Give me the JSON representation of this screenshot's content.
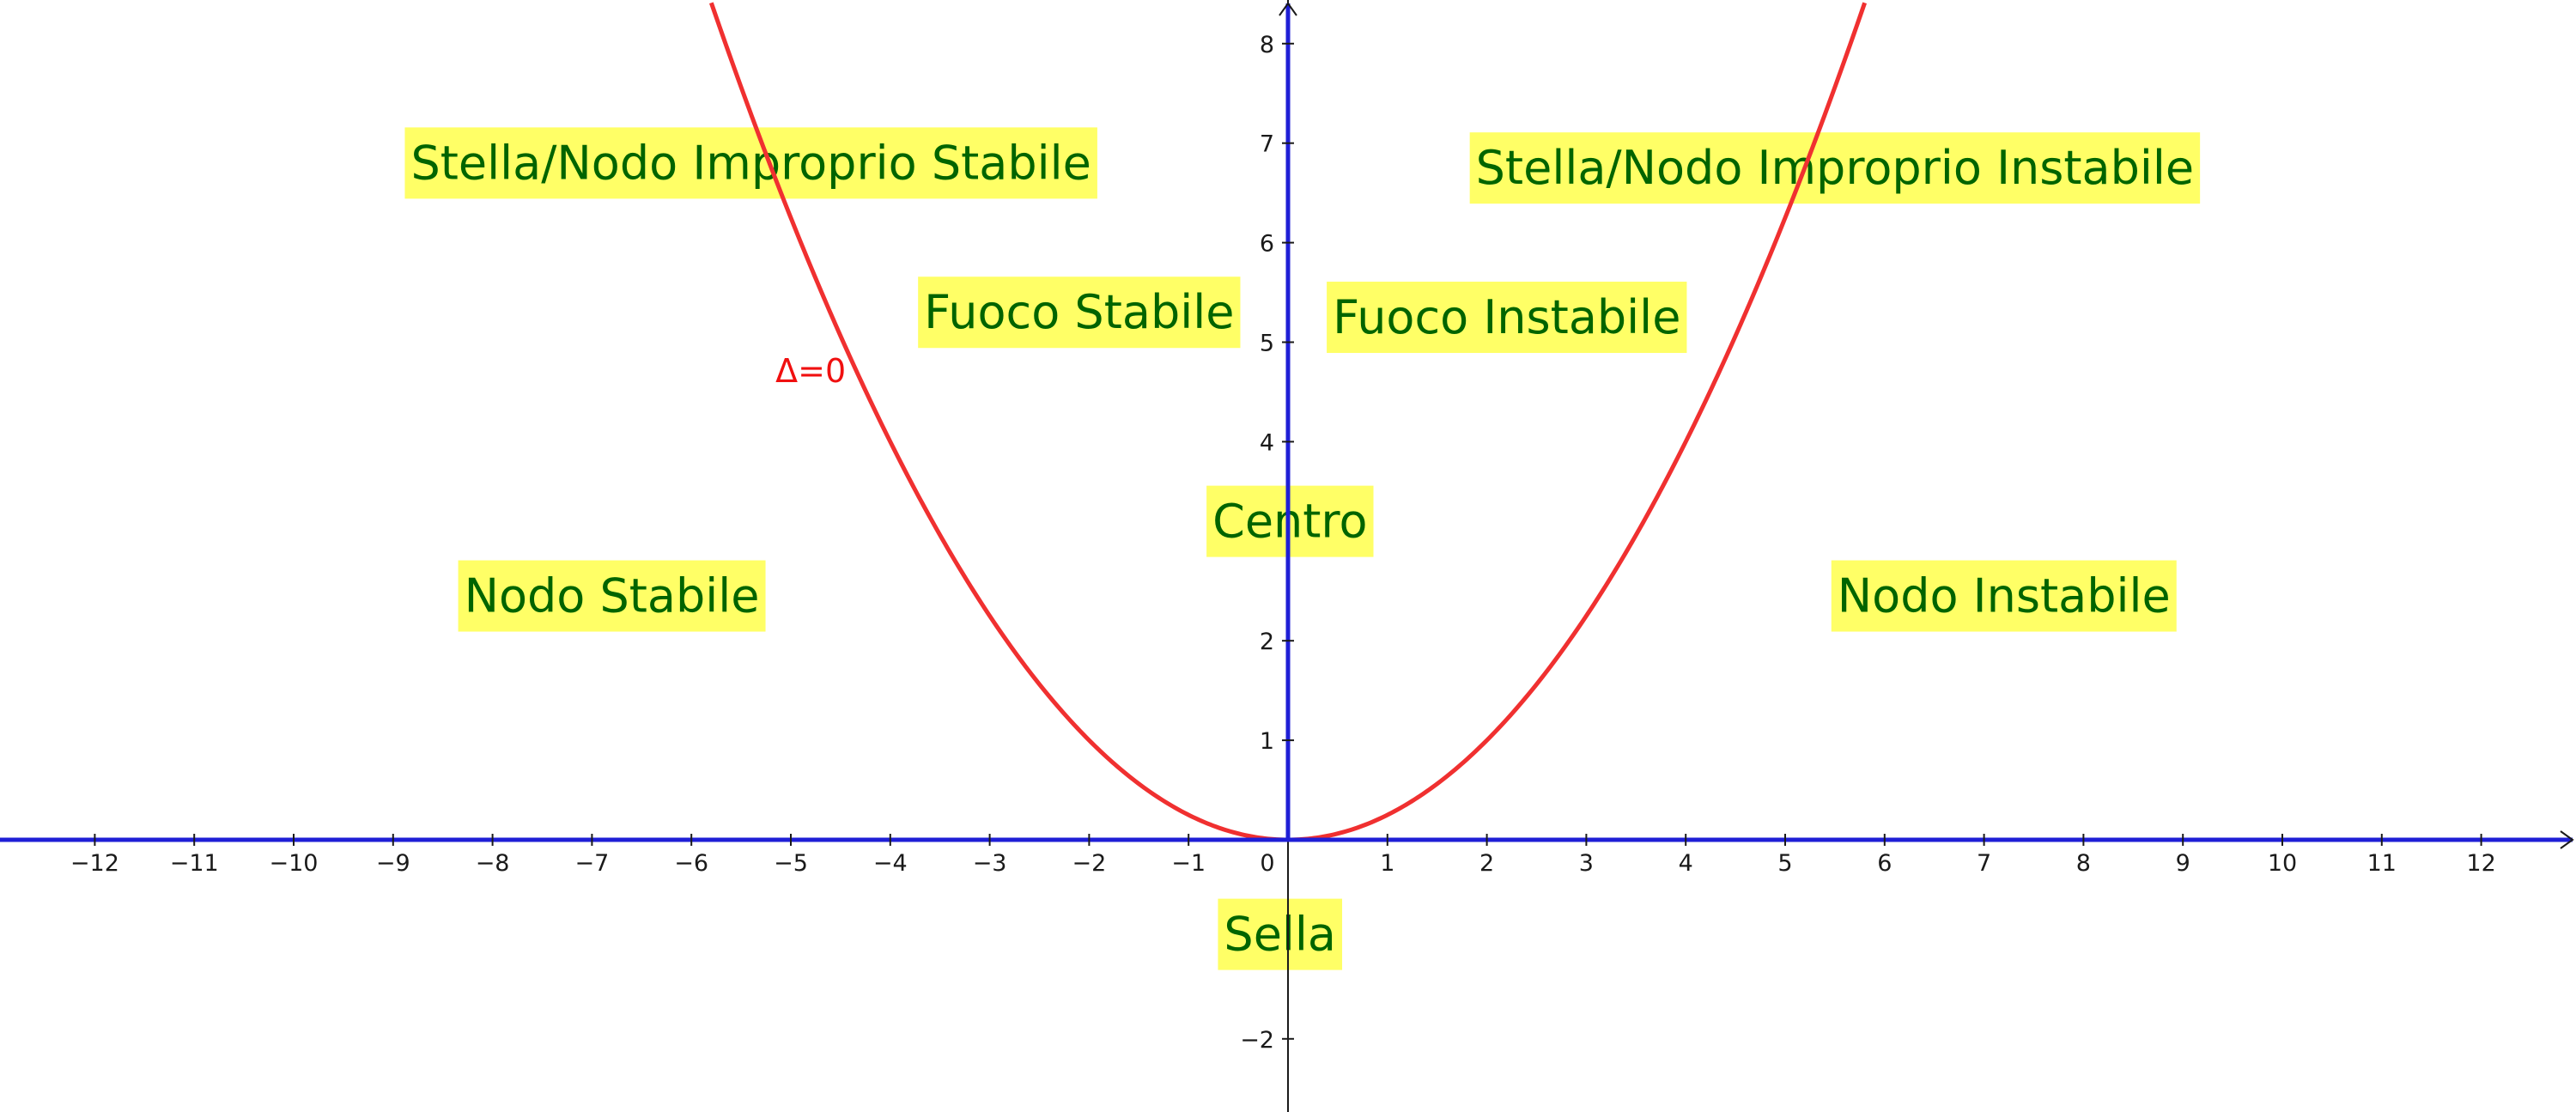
{
  "chart_data": {
    "type": "line",
    "xlim": [
      -13,
      13
    ],
    "ylim": [
      -2.75,
      8.45
    ],
    "x_ticks": [
      -12,
      -11,
      -10,
      -9,
      -8,
      -7,
      -6,
      -5,
      -4,
      -3,
      -2,
      -1,
      0,
      1,
      2,
      3,
      4,
      5,
      6,
      7,
      8,
      9,
      10,
      11,
      12
    ],
    "x_tick_labels": [
      "−12",
      "−11",
      "−10",
      "−9",
      "−8",
      "−7",
      "−6",
      "−5",
      "−4",
      "−3",
      "−2",
      "−1",
      "0",
      "1",
      "2",
      "3",
      "4",
      "5",
      "6",
      "7",
      "8",
      "9",
      "10",
      "11",
      "12"
    ],
    "y_ticks": [
      -2,
      1,
      2,
      4,
      5,
      6,
      7,
      8
    ],
    "y_tick_labels": [
      "−2",
      "1",
      "2",
      "4",
      "5",
      "6",
      "7",
      "8"
    ],
    "grid": false,
    "series": [
      {
        "name": "Δ=0",
        "function": "y = x^2 / 4",
        "x_range": [
          -5.8,
          5.8
        ],
        "label_at": [
          -4.8,
          4.6
        ]
      }
    ],
    "regions": [
      {
        "text": "Stella/Nodo Improprio  Stabile",
        "x": -5.4,
        "y": 6.8
      },
      {
        "text": "Fuoco Stabile",
        "x": -2.1,
        "y": 5.3
      },
      {
        "text": "Stella/Nodo Improprio Instabile",
        "x": 5.5,
        "y": 6.75
      },
      {
        "text": "Fuoco Instabile",
        "x": 2.2,
        "y": 5.25
      },
      {
        "text": "Centro",
        "x": 0.02,
        "y": 3.2
      },
      {
        "text": "Nodo Stabile",
        "x": -6.8,
        "y": 2.45
      },
      {
        "text": "Nodo Instabile",
        "x": 7.2,
        "y": 2.45
      },
      {
        "text": "Sella",
        "x": -0.08,
        "y": -0.95
      }
    ]
  },
  "colors": {
    "axis": "#1f1fd6",
    "axis_thin": "#1a1a1a",
    "curve": "#f03030",
    "region_bg": "#ffff66",
    "region_text": "#006400",
    "curve_label": "#f01010"
  }
}
